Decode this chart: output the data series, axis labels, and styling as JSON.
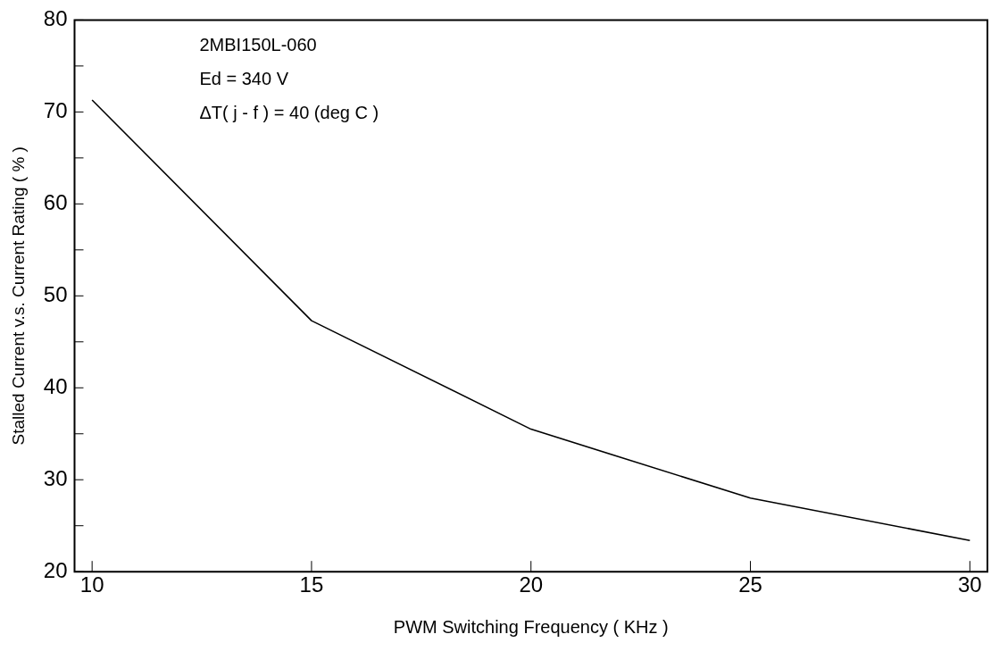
{
  "chart_data": {
    "type": "line",
    "xlabel": "PWM Switching Frequency ( KHz )",
    "ylabel": "Stalled Current v.s. Current Rating ( % )",
    "x": [
      10,
      15,
      20,
      25,
      30
    ],
    "series": [
      {
        "color": "#000000",
        "values": [
          71.3,
          47.3,
          35.5,
          28.0,
          23.4
        ]
      }
    ],
    "xlim": [
      9.6,
      30.4
    ],
    "xticks": [
      10,
      15,
      20,
      25,
      30
    ],
    "ylim": [
      20,
      80
    ],
    "yticks": [
      20,
      {
        "value": 25,
        "label": null
      },
      30,
      {
        "value": 35,
        "label": null
      },
      40,
      {
        "value": 45,
        "label": null
      },
      50,
      {
        "value": 55,
        "label": null
      },
      60,
      {
        "value": 65,
        "label": null
      },
      70,
      {
        "value": 75,
        "label": null
      },
      80
    ],
    "annotations": [
      "2MBI150L-060",
      "Ed = 340 V",
      "ΔT( j - f ) = 40 (deg C )"
    ],
    "grid": false,
    "legend": false,
    "marker": "none",
    "line_style": "solid"
  }
}
